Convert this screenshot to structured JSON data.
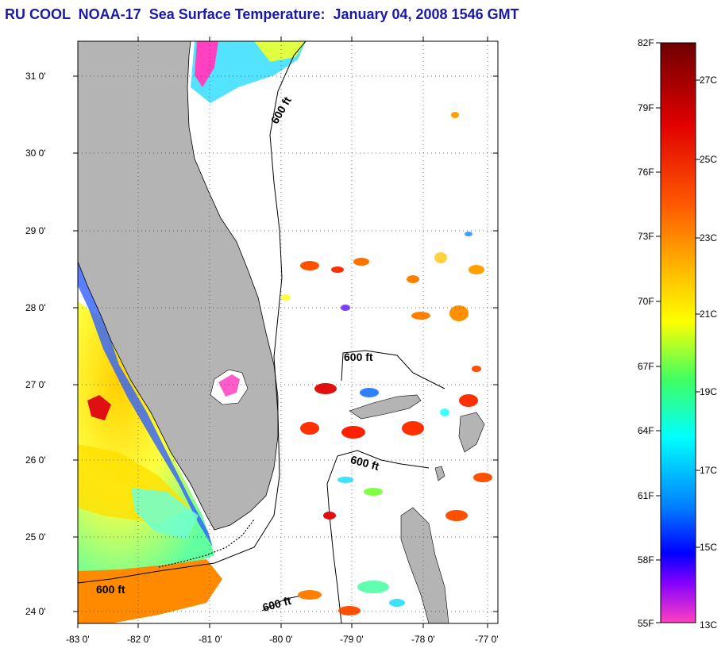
{
  "header": {
    "title": "RU COOL  NOAA-17  Sea Surface Temperature:  January 04, 2008 1546 GMT"
  },
  "map": {
    "lat_ticks": [
      "31 0'",
      "30 0'",
      "29 0'",
      "28 0'",
      "27 0'",
      "26 0'",
      "25 0'",
      "24 0'"
    ],
    "lon_ticks": [
      "-83 0'",
      "-82 0'",
      "-81 0'",
      "-80 0'",
      "-79 0'",
      "-78 0'",
      "-77 0'"
    ],
    "contour_labels": [
      "600 ft",
      "600 ft",
      "600 ft",
      "600 ft",
      "600 ft"
    ],
    "colors": {
      "land": "#b4b4b4",
      "ocean_nodata": "#ffffff",
      "coast": "#000000"
    }
  },
  "colorbar": {
    "fahrenheit": [
      "82F",
      "79F",
      "76F",
      "73F",
      "70F",
      "67F",
      "64F",
      "61F",
      "58F",
      "55F"
    ],
    "celsius": [
      "27C",
      "25C",
      "23C",
      "21C",
      "19C",
      "17C",
      "15C",
      "13C"
    ],
    "stops": [
      "#6e0000",
      "#ff0000",
      "#ff8000",
      "#ffff00",
      "#40ff40",
      "#00ffff",
      "#0090ff",
      "#0000ff",
      "#ff40c0"
    ]
  }
}
